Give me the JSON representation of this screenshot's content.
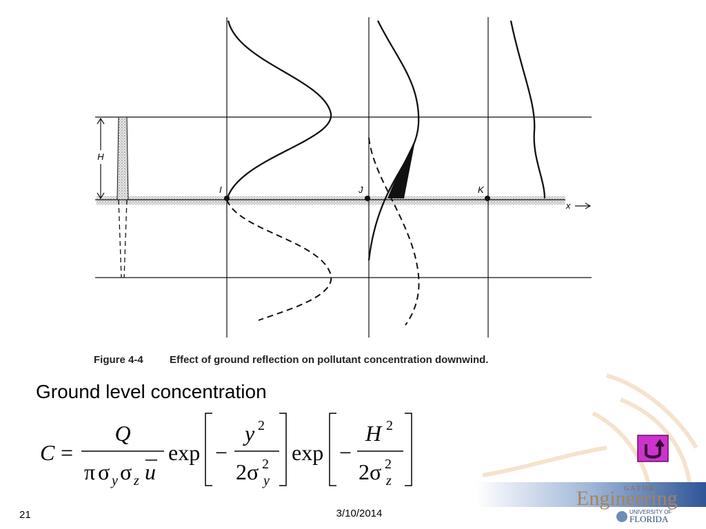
{
  "figure": {
    "labels": {
      "height": "H",
      "point_i": "I",
      "point_j": "J",
      "point_k": "K",
      "x_axis": "x"
    },
    "caption": {
      "number": "Figure 4-4",
      "text": "Effect of ground reflection on pollutant concentration downwind."
    }
  },
  "heading": "Ground level concentration",
  "equation": {
    "lhs": "C",
    "equals": "=",
    "factor1": {
      "numerator": "Q",
      "denominator": [
        "π",
        "σ",
        "y",
        "σ",
        "z",
        "u"
      ]
    },
    "exp1": {
      "func": "exp",
      "minus": "−",
      "numerator": [
        "y",
        "2"
      ],
      "denominator": [
        "2σ",
        "2",
        "y"
      ]
    },
    "exp2": {
      "func": "exp",
      "minus": "−",
      "numerator": [
        "H",
        "2"
      ],
      "denominator": [
        "2σ",
        "2",
        "z"
      ]
    }
  },
  "footer": {
    "slide_number": "21",
    "date": "3/10/2014"
  },
  "logo": {
    "gator": "G A T O R",
    "engineering": "Engineering",
    "university": "UNIVERSITY OF",
    "florida": "FLORIDA"
  }
}
